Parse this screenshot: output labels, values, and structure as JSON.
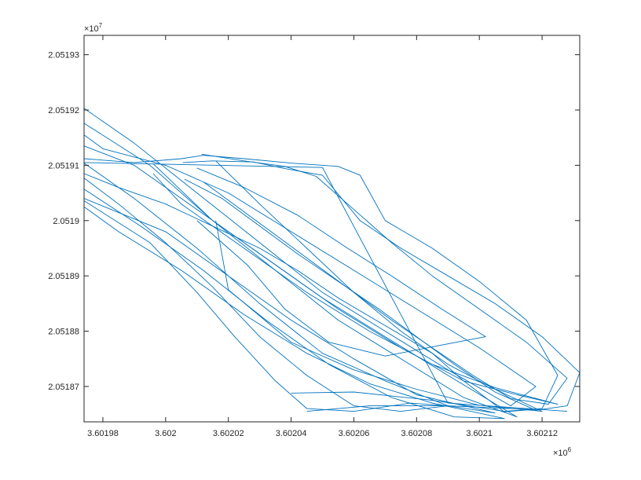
{
  "chart_data": {
    "type": "line",
    "title": "",
    "xlabel": "",
    "ylabel": "",
    "x_multiplier_label": "×10",
    "x_multiplier_exponent": "6",
    "y_multiplier_label": "×10",
    "y_multiplier_exponent": "7",
    "x_ticks": [
      3.60198,
      3.602,
      3.60202,
      3.60204,
      3.60206,
      3.60208,
      3.6021,
      3.60212
    ],
    "x_tick_labels": [
      "3.60198",
      "3.602",
      "3.60202",
      "3.60204",
      "3.60206",
      "3.60208",
      "3.6021",
      "3.60212"
    ],
    "y_ticks": [
      2.05187,
      2.05188,
      2.05189,
      2.0519,
      2.05191,
      2.05192,
      2.05193
    ],
    "y_tick_labels": [
      "2.05187",
      "2.05188",
      "2.05189",
      "2.0519",
      "2.05191",
      "2.05192",
      "2.05193"
    ],
    "xlim": [
      3.601974,
      3.602132
    ],
    "ylim": [
      2.0518636,
      2.0519335
    ],
    "grid": false,
    "legend": "none",
    "line_color": "#0072BD",
    "series": [
      {
        "x": [
          3.601974,
          3.60199,
          3.60201,
          3.60203,
          3.60205,
          3.60207,
          3.60209,
          3.60211,
          3.602118,
          3.6021,
          3.60208,
          3.60206,
          3.60204,
          3.60202,
          3.602,
          3.60198,
          3.601974
        ],
        "y": [
          2.0519203,
          2.051914,
          2.051905,
          2.051896,
          2.051887,
          2.05188,
          2.051873,
          2.0518665,
          2.05187,
          2.051877,
          2.051884,
          2.051891,
          2.051898,
          2.051905,
          2.05191,
          2.051913,
          2.0519155
        ]
      },
      {
        "x": [
          3.601974,
          3.601995,
          3.602015,
          3.602035,
          3.602055,
          3.602075,
          3.602095,
          3.602112,
          3.60209,
          3.60207,
          3.60205,
          3.60203,
          3.60201,
          3.60199,
          3.601974
        ],
        "y": [
          2.0519176,
          2.05191,
          2.0519,
          2.051891,
          2.051882,
          2.051875,
          2.051868,
          2.0518645,
          2.051872,
          2.051879,
          2.051886,
          2.051894,
          2.051902,
          2.05191,
          2.0519135
        ]
      },
      {
        "x": [
          3.601974,
          3.60199,
          3.60201,
          3.60203,
          3.60205,
          3.60207,
          3.60209,
          3.602105,
          3.60208,
          3.60206,
          3.60204,
          3.60202,
          3.602,
          3.601974
        ],
        "y": [
          2.0519104,
          2.051904,
          2.051895,
          2.051885,
          2.051876,
          2.051871,
          2.0518665,
          2.0518652,
          2.0518685,
          2.051875,
          2.051882,
          2.05189,
          2.051898,
          2.051904
        ]
      },
      {
        "x": [
          3.601974,
          3.601985,
          3.602,
          3.602015,
          3.60203,
          3.602045,
          3.60206,
          3.602075,
          3.60209,
          3.602078,
          3.60206,
          3.602045,
          3.602035,
          3.602022,
          3.60201,
          3.601995,
          3.601974
        ],
        "y": [
          2.0519077,
          2.051903,
          2.051896,
          2.051888,
          2.051879,
          2.051872,
          2.0518665,
          2.0518655,
          2.0518665,
          2.051867,
          2.0518655,
          2.051866,
          2.051871,
          2.051879,
          2.051887,
          2.051896,
          2.0519036
        ]
      },
      {
        "x": [
          3.601974,
          3.601992,
          3.602012,
          3.602032,
          3.602052,
          3.602072,
          3.602092,
          3.602108,
          3.602085,
          3.602065,
          3.602045,
          3.602025,
          3.602005,
          3.601985,
          3.601974
        ],
        "y": [
          2.0519057,
          2.051899,
          2.051891,
          2.051882,
          2.051874,
          2.051868,
          2.0518645,
          2.0518642,
          2.051867,
          2.0518705,
          2.051876,
          2.051883,
          2.051891,
          2.051898,
          2.0519025
        ]
      },
      {
        "x": [
          3.601974,
          3.60199,
          3.602005,
          3.602012,
          3.602025,
          3.60204,
          3.602055,
          3.602062,
          3.60207,
          3.602085,
          3.6021,
          3.602115,
          3.602125,
          3.60212,
          3.602108,
          3.602095,
          3.602085,
          3.60207,
          3.602055,
          3.602042,
          3.60203,
          3.602015,
          3.602,
          3.601985,
          3.601974
        ],
        "y": [
          2.0519112,
          2.0519105,
          2.0519112,
          2.0519118,
          2.0519112,
          2.0519104,
          2.0519098,
          2.0519082,
          2.0519,
          2.051895,
          2.051889,
          2.051882,
          2.051872,
          2.051866,
          2.0518654,
          2.051871,
          2.051876,
          2.051881,
          2.051886,
          2.051891,
          2.051895,
          2.051899,
          2.051903,
          2.051906,
          2.0519085
        ]
      },
      {
        "x": [
          3.6020055,
          3.602015,
          3.602028,
          3.602038,
          3.60205,
          3.602062,
          3.602075,
          3.60209,
          3.602105,
          3.60212,
          3.602132,
          3.602128,
          3.602118,
          3.602105,
          3.602092,
          3.60208,
          3.602068,
          3.602055,
          3.602042,
          3.60203,
          3.602018,
          3.602006
        ],
        "y": [
          2.0519105,
          2.0519108,
          2.0519106,
          2.0519094,
          2.0519082,
          2.0519,
          2.051895,
          2.05189,
          2.051885,
          2.051879,
          2.0518725,
          2.0518665,
          2.0518657,
          2.051869,
          2.051874,
          2.051879,
          2.051884,
          2.051889,
          2.051894,
          2.051899,
          2.051904,
          2.0519075
        ]
      },
      {
        "x": [
          3.6020115,
          3.602025,
          3.602038,
          3.602048,
          3.60206,
          3.602072,
          3.602085,
          3.6021,
          3.602115,
          3.602128,
          3.602122,
          3.60211,
          3.602098,
          3.602085,
          3.602072,
          3.60206,
          3.602048,
          3.602036,
          3.602024,
          3.602012
        ],
        "y": [
          2.051912,
          2.0519108,
          2.0519098,
          2.051908,
          2.051902,
          2.051896,
          2.05189,
          2.051884,
          2.051878,
          2.0518715,
          2.0518668,
          2.0518678,
          2.051872,
          2.051877,
          2.051882,
          2.051887,
          2.051892,
          2.051897,
          2.051902,
          2.051907
        ]
      },
      {
        "x": [
          3.601996,
          3.602015,
          3.602035,
          3.602055,
          3.602075,
          3.602095,
          3.602112,
          3.602125,
          3.602105,
          3.602085,
          3.602065,
          3.602045,
          3.602025,
          3.602005,
          3.601996
        ],
        "y": [
          2.0519103,
          2.0519,
          2.051892,
          2.051884,
          2.051877,
          2.051871,
          2.0518685,
          2.0518668,
          2.0518698,
          2.051874,
          2.05188,
          2.051887,
          2.051895,
          2.051903,
          2.0519085
        ]
      },
      {
        "x": [
          3.602016,
          3.60203,
          3.602045,
          3.60206,
          3.602075,
          3.60209,
          3.602105,
          3.60212,
          3.6021,
          3.60208,
          3.60206,
          3.60204,
          3.60202,
          3.602016
        ],
        "y": [
          2.0519108,
          2.051903,
          2.051895,
          2.051887,
          2.05188,
          2.051874,
          2.0518695,
          2.0518655,
          2.0518666,
          2.0518695,
          2.051873,
          2.051878,
          2.0518875,
          2.0519
        ],
        "_note": ""
      },
      {
        "x": [
          3.60201,
          3.602025,
          3.602042,
          3.602058,
          3.602072,
          3.602088,
          3.602102,
          3.602088,
          3.60207,
          3.602052,
          3.602038,
          3.602026,
          3.60201
        ],
        "y": [
          2.0519095,
          2.051906,
          2.051901,
          2.051895,
          2.05189,
          2.051884,
          2.051879,
          2.0518775,
          2.0518755,
          2.051878,
          2.051884,
          2.051892,
          2.0519
        ],
        "_note": ""
      },
      {
        "x": [
          3.601974,
          3.60205,
          3.60209,
          3.602128
        ],
        "y": [
          2.0519105,
          2.0519096,
          2.051867,
          2.0518655
        ]
      },
      {
        "x": [
          3.60204,
          3.60206,
          3.602085,
          3.602108,
          3.60212
        ],
        "y": [
          2.0518688,
          2.051869,
          2.0518675,
          2.0518655,
          2.051866
        ]
      },
      {
        "x": [
          3.602045,
          3.602065,
          3.60209,
          3.602118
        ],
        "y": [
          2.0518655,
          2.0518665,
          2.0518665,
          2.0518658
        ]
      }
    ]
  }
}
